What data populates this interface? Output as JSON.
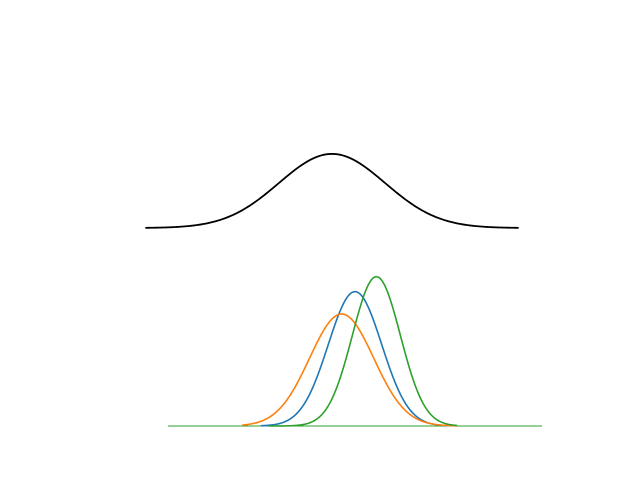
{
  "chart_data": [
    {
      "type": "line",
      "title": "",
      "xlabel": "",
      "ylabel": "",
      "axes_visible": false,
      "grid": false,
      "series": [
        {
          "kind": "gaussian",
          "mean": 0,
          "std": 1,
          "x_range": [
            -3.5,
            3.5
          ],
          "color": "#000000"
        }
      ]
    },
    {
      "type": "line",
      "title": "",
      "xlabel": "",
      "ylabel": "",
      "axes_visible": false,
      "grid": false,
      "baseline": {
        "x_range": [
          -3.5,
          3.5
        ],
        "color": "#2ca02c"
      },
      "series": [
        {
          "kind": "gaussian",
          "mean": 0.0,
          "std": 0.5,
          "x_range": [
            -1.75,
            1.75
          ],
          "color": "#1f77b4"
        },
        {
          "kind": "gaussian",
          "mean": -0.25,
          "std": 0.6,
          "x_range": [
            -2.1,
            1.9
          ],
          "color": "#ff7f0e"
        },
        {
          "kind": "gaussian",
          "mean": 0.4,
          "std": 0.45,
          "x_range": [
            -1.6,
            1.9
          ],
          "color": "#2ca02c"
        }
      ]
    }
  ]
}
